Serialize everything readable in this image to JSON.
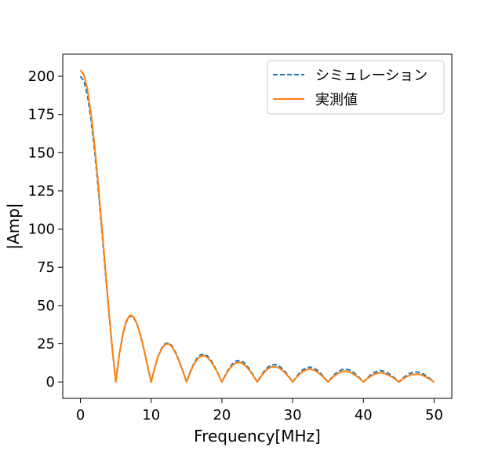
{
  "chart_data": {
    "type": "line",
    "xlabel": "Frequency[MHz]",
    "ylabel": "|Amp|",
    "xlim": [
      -2.5,
      52.5
    ],
    "ylim": [
      -10.7,
      214.4
    ],
    "xticks": [
      0,
      10,
      20,
      30,
      40,
      50
    ],
    "yticks": [
      0,
      25,
      50,
      75,
      100,
      125,
      150,
      175,
      200
    ],
    "legend_position": "top-right",
    "grid": false,
    "series": [
      {
        "name": "シミュレーション",
        "style": "dashed",
        "color": "#1f77b4",
        "x": [
          0.0,
          0.5,
          1.0,
          1.5,
          2.0,
          2.5,
          3.0,
          3.5,
          4.0,
          4.5,
          5.0,
          5.5,
          6.0,
          6.5,
          7.0,
          7.5,
          8.0,
          8.5,
          9.0,
          9.5,
          10.0,
          10.5,
          11.0,
          11.5,
          12.0,
          12.5,
          13.0,
          13.5,
          14.0,
          14.5,
          15.0,
          15.5,
          16.0,
          16.5,
          17.0,
          17.5,
          18.0,
          18.5,
          19.0,
          19.5,
          20.0,
          20.5,
          21.0,
          21.5,
          22.0,
          22.5,
          23.0,
          23.5,
          24.0,
          24.5,
          25.0,
          25.5,
          26.0,
          26.5,
          27.0,
          27.5,
          28.0,
          28.5,
          29.0,
          29.5,
          30.0,
          30.5,
          31.0,
          31.5,
          32.0,
          32.5,
          33.0,
          33.5,
          34.0,
          34.5,
          35.0,
          35.5,
          36.0,
          36.5,
          37.0,
          37.5,
          38.0,
          38.5,
          39.0,
          39.5,
          40.0,
          40.5,
          41.0,
          41.5,
          42.0,
          42.5,
          43.0,
          43.5,
          44.0,
          44.5,
          45.0,
          45.5,
          46.0,
          46.5,
          47.0,
          47.5,
          48.0,
          48.5,
          49.0,
          49.5,
          50.0
        ],
        "y": [
          200.0,
          196.8,
          187.1,
          171.7,
          151.4,
          127.3,
          100.9,
          73.6,
          46.8,
          21.9,
          0.0,
          17.9,
          31.2,
          39.6,
          43.2,
          42.4,
          37.8,
          30.3,
          20.8,
          10.3,
          0.0,
          9.4,
          17.0,
          22.3,
          25.2,
          25.5,
          23.3,
          19.0,
          13.4,
          6.9,
          0.0,
          6.4,
          11.7,
          15.6,
          17.8,
          18.2,
          16.8,
          13.8,
          9.8,
          5.1,
          0.0,
          4.8,
          8.9,
          11.9,
          13.7,
          14.1,
          13.1,
          10.8,
          7.7,
          4.0,
          0.0,
          3.9,
          7.2,
          9.7,
          11.1,
          11.5,
          10.7,
          8.9,
          6.4,
          3.3,
          0.0,
          3.2,
          6.0,
          8.1,
          9.4,
          9.7,
          9.1,
          7.6,
          5.4,
          2.8,
          0.0,
          2.8,
          5.2,
          7.0,
          8.1,
          8.4,
          7.9,
          6.6,
          4.7,
          2.5,
          0.0,
          2.4,
          4.5,
          6.1,
          7.1,
          7.4,
          6.9,
          5.8,
          4.2,
          2.2,
          0.0,
          2.2,
          4.0,
          5.5,
          6.3,
          6.6,
          6.2,
          5.2,
          3.7,
          1.9,
          0.0
        ]
      },
      {
        "name": "実測値",
        "style": "solid",
        "color": "#ff7f0e",
        "x": [
          0.0,
          0.5,
          1.0,
          1.5,
          2.0,
          2.5,
          3.0,
          3.5,
          4.0,
          4.5,
          5.0,
          5.5,
          6.0,
          6.5,
          7.0,
          7.5,
          8.0,
          8.5,
          9.0,
          9.5,
          10.0,
          10.5,
          11.0,
          11.5,
          12.0,
          12.5,
          13.0,
          13.5,
          14.0,
          14.5,
          15.0,
          15.5,
          16.0,
          16.5,
          17.0,
          17.5,
          18.0,
          18.5,
          19.0,
          19.5,
          20.0,
          20.5,
          21.0,
          21.5,
          22.0,
          22.5,
          23.0,
          23.5,
          24.0,
          24.5,
          25.0,
          25.5,
          26.0,
          26.5,
          27.0,
          27.5,
          28.0,
          28.5,
          29.0,
          29.5,
          30.0,
          30.5,
          31.0,
          31.5,
          32.0,
          32.5,
          33.0,
          33.5,
          34.0,
          34.5,
          35.0,
          35.5,
          36.0,
          36.5,
          37.0,
          37.5,
          38.0,
          38.5,
          39.0,
          39.5,
          40.0,
          40.5,
          41.0,
          41.5,
          42.0,
          42.5,
          43.0,
          43.5,
          44.0,
          44.5,
          45.0,
          45.5,
          46.0,
          46.5,
          47.0,
          47.5,
          48.0,
          48.5,
          49.0,
          49.5,
          50.0
        ],
        "y": [
          204.0,
          200.8,
          190.8,
          175.1,
          154.5,
          129.9,
          102.9,
          75.1,
          47.7,
          22.3,
          0.0,
          18.2,
          31.7,
          40.2,
          43.7,
          42.8,
          38.1,
          30.5,
          20.9,
          10.3,
          0.0,
          9.3,
          16.8,
          21.9,
          24.7,
          24.9,
          22.7,
          18.5,
          13.0,
          6.7,
          0.0,
          6.1,
          11.2,
          14.8,
          16.9,
          17.2,
          15.8,
          13.0,
          9.2,
          4.8,
          0.0,
          4.4,
          8.2,
          10.9,
          12.5,
          12.9,
          11.9,
          9.8,
          7.0,
          3.6,
          0.0,
          3.5,
          6.4,
          8.6,
          9.8,
          10.1,
          9.4,
          7.8,
          5.6,
          2.9,
          0.0,
          2.8,
          5.2,
          7.0,
          8.1,
          8.4,
          7.8,
          6.5,
          4.6,
          2.4,
          0.0,
          2.4,
          4.4,
          5.9,
          6.8,
          7.1,
          6.6,
          5.5,
          3.9,
          2.1,
          0.0,
          2.0,
          3.7,
          5.0,
          5.8,
          6.0,
          5.6,
          4.7,
          3.4,
          1.8,
          0.0,
          1.7,
          3.2,
          4.3,
          5.0,
          5.2,
          4.9,
          4.1,
          2.9,
          1.5,
          0.0
        ]
      }
    ]
  }
}
